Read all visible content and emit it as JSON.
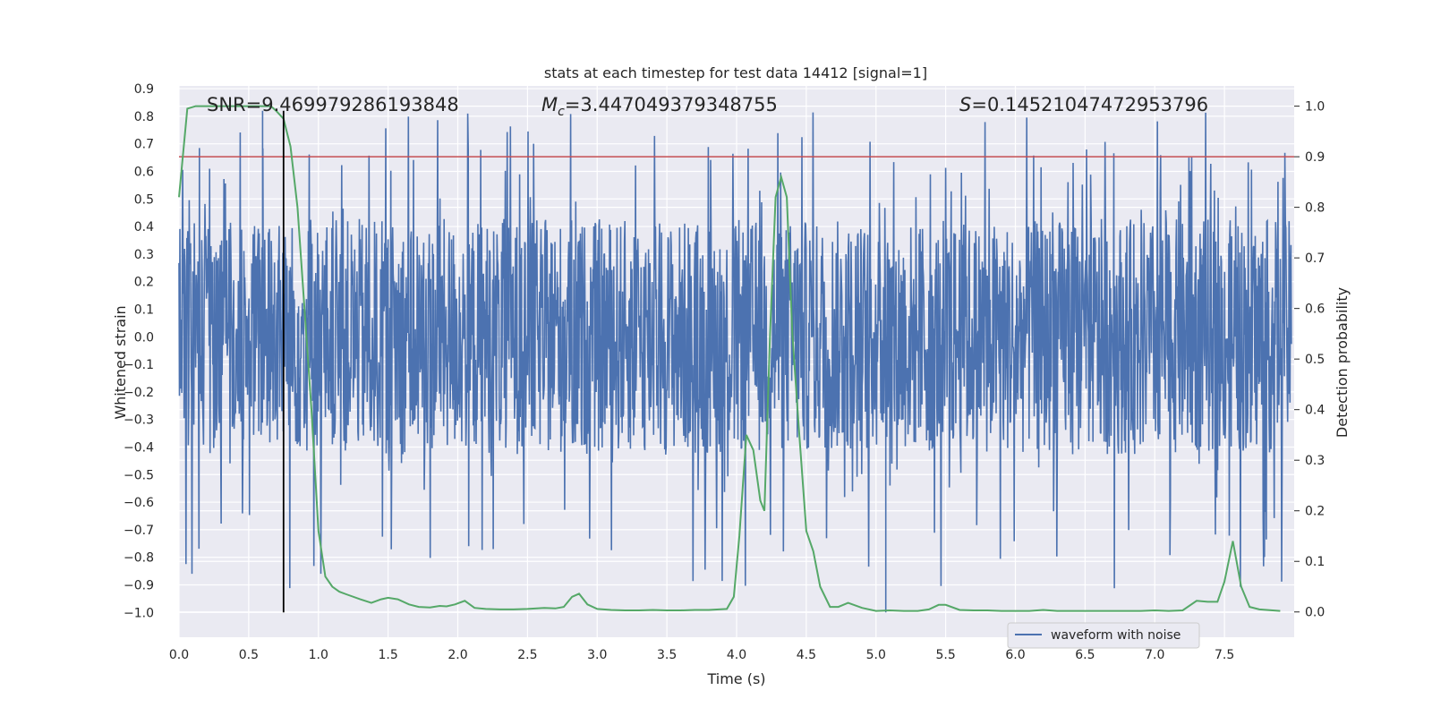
{
  "chart_data": {
    "type": "line",
    "title": "stats at each timestep for test data 14412 [signal=1]",
    "xlabel": "Time (s)",
    "ylabel_left": "Whitened strain",
    "ylabel_right": "Detection probability",
    "xlim": [
      0.0,
      8.0
    ],
    "ylim_left": [
      -1.09,
      0.91
    ],
    "ylim_right": [
      -0.05,
      1.04
    ],
    "x_ticks": [
      "0.0",
      "0.5",
      "1.0",
      "1.5",
      "2.0",
      "2.5",
      "3.0",
      "3.5",
      "4.0",
      "4.5",
      "5.0",
      "5.5",
      "6.0",
      "6.5",
      "7.0",
      "7.5"
    ],
    "y_left_ticks": [
      "0.9",
      "0.8",
      "0.7",
      "0.6",
      "0.5",
      "0.4",
      "0.3",
      "0.2",
      "0.1",
      "0.0",
      "−0.1",
      "−0.2",
      "−0.3",
      "−0.4",
      "−0.5",
      "−0.6",
      "−0.7",
      "−0.8",
      "−0.9",
      "−1.0"
    ],
    "y_right_ticks": [
      "0.0",
      "0.1",
      "0.2",
      "0.3",
      "0.4",
      "0.5",
      "0.6",
      "0.7",
      "0.8",
      "0.9",
      "1.0"
    ],
    "annotations": {
      "snr": "SNR=9.469979286193848",
      "mc_symbol": "M",
      "mc_sub": "c",
      "mc_value": "=3.447049379348755",
      "s_symbol": "S",
      "s_value": "=0.14521047472953796"
    },
    "series": [
      {
        "name": "waveform with noise",
        "axis": "left",
        "color": "#4c72b0",
        "kind": "noise",
        "core_range": [
          -0.45,
          0.45
        ],
        "spike_max": 0.82,
        "spike_min": -1.0
      },
      {
        "name": "detection probability",
        "axis": "right",
        "color": "#55a868",
        "x": [
          0.0,
          0.06,
          0.12,
          0.2,
          0.3,
          0.4,
          0.5,
          0.6,
          0.66,
          0.7,
          0.75,
          0.8,
          0.85,
          0.9,
          0.95,
          1.0,
          1.05,
          1.1,
          1.15,
          1.2,
          1.3,
          1.38,
          1.45,
          1.5,
          1.57,
          1.65,
          1.72,
          1.8,
          1.87,
          1.92,
          1.98,
          2.05,
          2.12,
          2.2,
          2.3,
          2.4,
          2.5,
          2.62,
          2.7,
          2.76,
          2.82,
          2.87,
          2.93,
          3.0,
          3.1,
          3.2,
          3.3,
          3.4,
          3.5,
          3.6,
          3.7,
          3.8,
          3.93,
          3.98,
          4.02,
          4.07,
          4.12,
          4.17,
          4.2,
          4.24,
          4.28,
          4.32,
          4.36,
          4.4,
          4.45,
          4.5,
          4.55,
          4.6,
          4.67,
          4.73,
          4.8,
          4.9,
          5.0,
          5.1,
          5.2,
          5.3,
          5.38,
          5.45,
          5.5,
          5.6,
          5.7,
          5.8,
          5.9,
          6.0,
          6.1,
          6.2,
          6.3,
          6.4,
          6.5,
          6.6,
          6.7,
          6.8,
          6.9,
          7.0,
          7.1,
          7.2,
          7.3,
          7.38,
          7.45,
          7.5,
          7.56,
          7.62,
          7.68,
          7.75,
          7.9
        ],
        "y": [
          0.82,
          0.995,
          1.0,
          1.0,
          1.0,
          1.0,
          1.0,
          1.0,
          1.0,
          0.99,
          0.975,
          0.92,
          0.8,
          0.6,
          0.4,
          0.16,
          0.07,
          0.05,
          0.04,
          0.035,
          0.025,
          0.018,
          0.025,
          0.028,
          0.025,
          0.015,
          0.01,
          0.009,
          0.012,
          0.011,
          0.015,
          0.022,
          0.008,
          0.006,
          0.005,
          0.005,
          0.006,
          0.008,
          0.007,
          0.01,
          0.03,
          0.036,
          0.015,
          0.006,
          0.004,
          0.003,
          0.003,
          0.004,
          0.003,
          0.003,
          0.004,
          0.004,
          0.006,
          0.03,
          0.15,
          0.35,
          0.32,
          0.22,
          0.2,
          0.55,
          0.82,
          0.86,
          0.82,
          0.55,
          0.35,
          0.16,
          0.12,
          0.05,
          0.01,
          0.01,
          0.018,
          0.008,
          0.002,
          0.003,
          0.002,
          0.002,
          0.005,
          0.014,
          0.014,
          0.004,
          0.003,
          0.003,
          0.002,
          0.002,
          0.002,
          0.004,
          0.002,
          0.002,
          0.002,
          0.002,
          0.002,
          0.002,
          0.002,
          0.003,
          0.002,
          0.003,
          0.022,
          0.02,
          0.02,
          0.06,
          0.14,
          0.05,
          0.01,
          0.005,
          0.002
        ]
      },
      {
        "name": "threshold",
        "axis": "right",
        "color": "#c44e52",
        "value": 0.9
      },
      {
        "name": "event marker",
        "axis": "left",
        "color": "#000000",
        "x": 0.75,
        "y_range": [
          -1.0,
          0.82
        ]
      }
    ],
    "legend": {
      "location": "lower right",
      "entries": [
        "waveform with noise"
      ]
    },
    "grid": true
  }
}
